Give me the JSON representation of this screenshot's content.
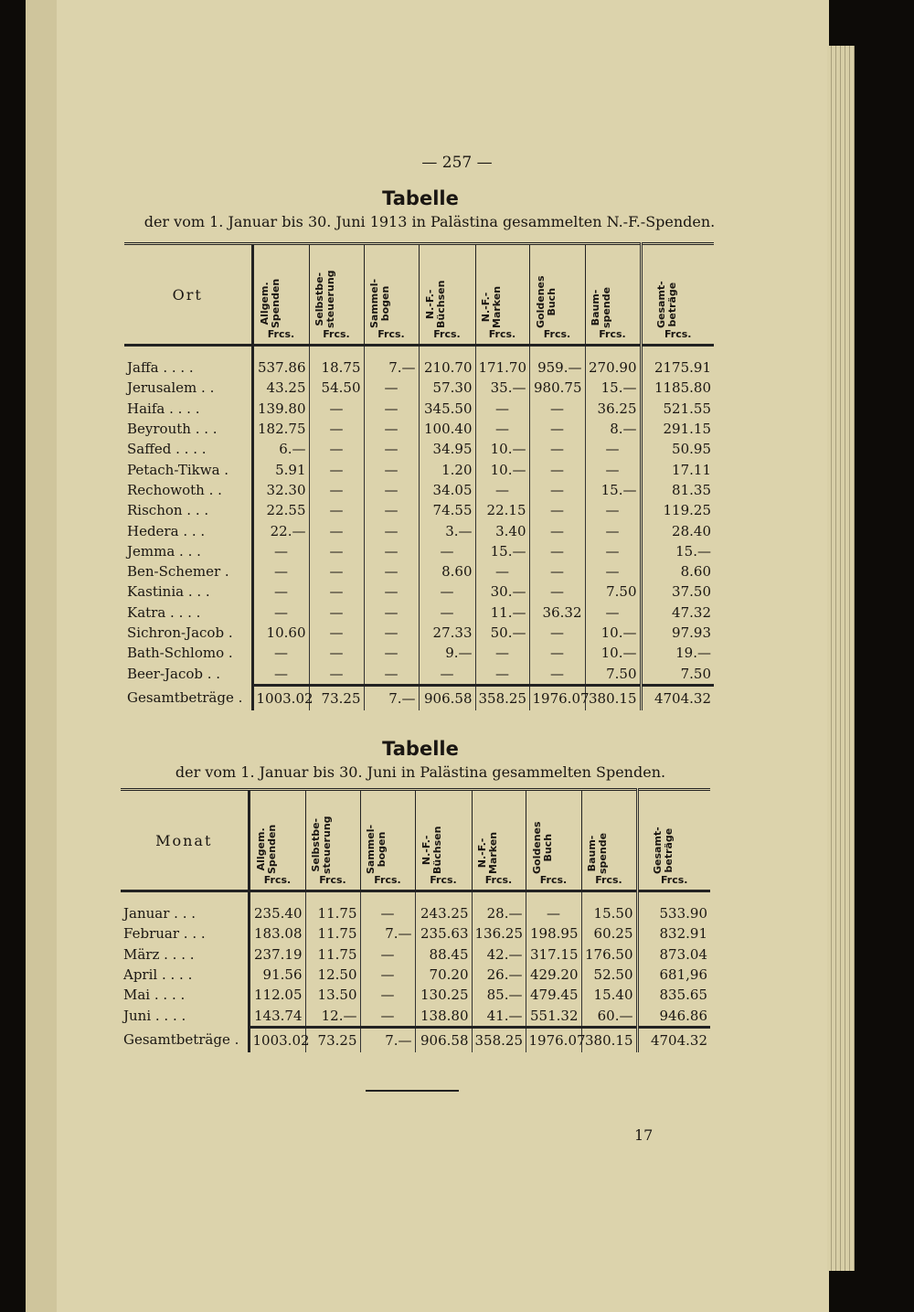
{
  "page_number": "— 257 —",
  "footer_signature": "17",
  "columns": [
    {
      "label": "Allgem.\nSpenden",
      "unit": "Frcs."
    },
    {
      "label": "Selbstbe-\nsteuerung",
      "unit": "Frcs."
    },
    {
      "label": "Sammel-\nbogen",
      "unit": "Frcs."
    },
    {
      "label": "N.-F.-\nBüchsen",
      "unit": "Frcs."
    },
    {
      "label": "N.-F.-\nMarken",
      "unit": "Frcs."
    },
    {
      "label": "Goldenes\nBuch",
      "unit": "Frcs."
    },
    {
      "label": "Baum-\nspende",
      "unit": "Frcs."
    },
    {
      "label": "Gesamt-\nbeträge",
      "unit": "Frcs."
    }
  ],
  "table1": {
    "title": "Tabelle",
    "subtitle": "der vom 1. Januar bis 30. Juni 1913 in Palästina gesammelten N.-F.-Spenden.",
    "first_header": "Ort",
    "rows": [
      {
        "name": "Jaffa . . . .",
        "values": [
          "537.86",
          "18.75",
          "7.—",
          "210.70",
          "171.70",
          "959.—",
          "270.90",
          "2175.91"
        ]
      },
      {
        "name": "Jerusalem . .",
        "values": [
          "43.25",
          "54.50",
          "—",
          "57.30",
          "35.—",
          "980.75",
          "15.—",
          "1185.80"
        ]
      },
      {
        "name": "Haifa . . . .",
        "values": [
          "139.80",
          "—",
          "—",
          "345.50",
          "—",
          "—",
          "36.25",
          "521.55"
        ]
      },
      {
        "name": "Beyrouth . . .",
        "values": [
          "182.75",
          "—",
          "—",
          "100.40",
          "—",
          "—",
          "8.—",
          "291.15"
        ]
      },
      {
        "name": "Saffed . . . .",
        "values": [
          "6.—",
          "—",
          "—",
          "34.95",
          "10.—",
          "—",
          "—",
          "50.95"
        ]
      },
      {
        "name": "Petach-Tikwa .",
        "values": [
          "5.91",
          "—",
          "—",
          "1.20",
          "10.—",
          "—",
          "—",
          "17.11"
        ]
      },
      {
        "name": "Rechowoth . .",
        "values": [
          "32.30",
          "—",
          "—",
          "34.05",
          "—",
          "—",
          "15.—",
          "81.35"
        ]
      },
      {
        "name": "Rischon . . .",
        "values": [
          "22.55",
          "—",
          "—",
          "74.55",
          "22.15",
          "—",
          "—",
          "119.25"
        ]
      },
      {
        "name": "Hedera . . .",
        "values": [
          "22.—",
          "—",
          "—",
          "3.—",
          "3.40",
          "—",
          "—",
          "28.40"
        ]
      },
      {
        "name": "Jemma . . .",
        "values": [
          "—",
          "—",
          "—",
          "—",
          "15.—",
          "—",
          "—",
          "15.—"
        ]
      },
      {
        "name": "Ben-Schemer .",
        "values": [
          "—",
          "—",
          "—",
          "8.60",
          "—",
          "—",
          "—",
          "8.60"
        ]
      },
      {
        "name": "Kastinia . . .",
        "values": [
          "—",
          "—",
          "—",
          "—",
          "30.—",
          "—",
          "7.50",
          "37.50"
        ]
      },
      {
        "name": "Katra . . . .",
        "values": [
          "—",
          "—",
          "—",
          "—",
          "11.—",
          "36.32",
          "—",
          "47.32"
        ]
      },
      {
        "name": "Sichron-Jacob .",
        "values": [
          "10.60",
          "—",
          "—",
          "27.33",
          "50.—",
          "—",
          "10.—",
          "97.93"
        ]
      },
      {
        "name": "Bath-Schlomo .",
        "values": [
          "—",
          "—",
          "—",
          "9.—",
          "—",
          "—",
          "10.—",
          "19.—"
        ]
      },
      {
        "name": "Beer-Jacob . .",
        "values": [
          "—",
          "—",
          "—",
          "—",
          "—",
          "—",
          "7.50",
          "7.50"
        ]
      }
    ],
    "total": {
      "name": "Gesamtbeträge .",
      "values": [
        "1003.02",
        "73.25",
        "7.—",
        "906.58",
        "358.25",
        "1976.07",
        "380.15",
        "4704.32"
      ]
    }
  },
  "table2": {
    "title": "Tabelle",
    "subtitle": "der vom 1. Januar bis 30. Juni in Palästina gesammelten Spenden.",
    "first_header": "Monat",
    "rows": [
      {
        "name": "Januar . . .",
        "values": [
          "235.40",
          "11.75",
          "—",
          "243.25",
          "28.—",
          "—",
          "15.50",
          "533.90"
        ]
      },
      {
        "name": "Februar . . .",
        "values": [
          "183.08",
          "11.75",
          "7.—",
          "235.63",
          "136.25",
          "198.95",
          "60.25",
          "832.91"
        ]
      },
      {
        "name": "März . . . .",
        "values": [
          "237.19",
          "11.75",
          "—",
          "88.45",
          "42.—",
          "317.15",
          "176.50",
          "873.04"
        ]
      },
      {
        "name": "April . . . .",
        "values": [
          "91.56",
          "12.50",
          "—",
          "70.20",
          "26.—",
          "429.20",
          "52.50",
          "681,96"
        ]
      },
      {
        "name": "Mai . . . .",
        "values": [
          "112.05",
          "13.50",
          "—",
          "130.25",
          "85.—",
          "479.45",
          "15.40",
          "835.65"
        ]
      },
      {
        "name": "Juni . . . .",
        "values": [
          "143.74",
          "12.—",
          "—",
          "138.80",
          "41.—",
          "551.32",
          "60.—",
          "946.86"
        ]
      }
    ],
    "total": {
      "name": "Gesamtbeträge .",
      "values": [
        "1003.02",
        "73.25",
        "7.—",
        "906.58",
        "358.25",
        "1976.07",
        "380.15",
        "4704.32"
      ]
    }
  }
}
